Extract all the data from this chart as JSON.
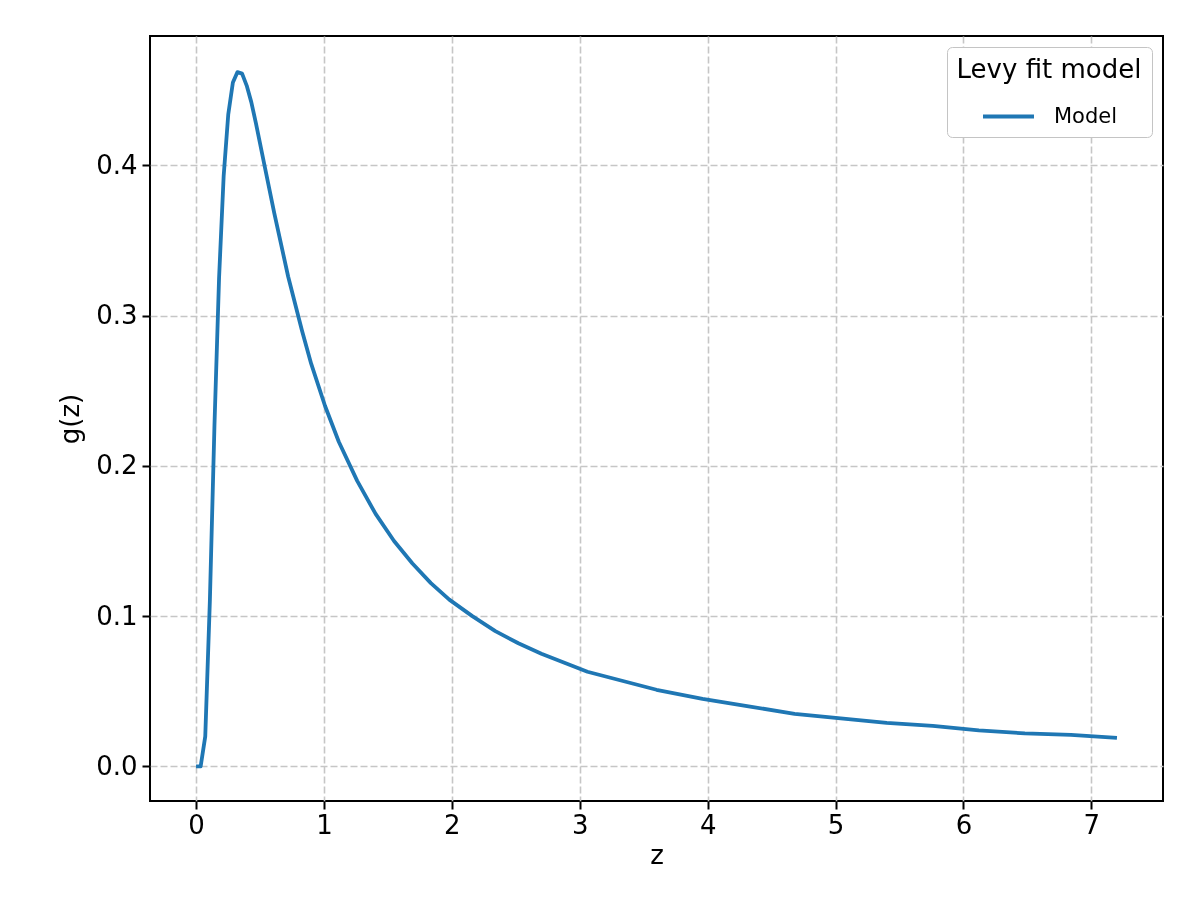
{
  "chart_data": {
    "type": "line",
    "xlabel": "z",
    "ylabel": "g(z)",
    "legend_title": "Levy fit model",
    "legend": "top right",
    "grid": true,
    "xlim": [
      -0.36,
      7.56
    ],
    "ylim": [
      -0.023,
      0.486
    ],
    "xticks": [
      0,
      1,
      2,
      3,
      4,
      5,
      6,
      7
    ],
    "yticks": [
      {
        "value": 0,
        "label": "0.0"
      },
      0.1,
      0.2,
      0.3,
      0.4
    ],
    "series": [
      {
        "name": "Model",
        "color": "#1f77b4",
        "x": [
          0,
          0.036,
          0.072,
          0.108,
          0.144,
          0.18,
          0.216,
          0.252,
          0.288,
          0.324,
          0.36,
          0.396,
          0.432,
          0.468,
          0.54,
          0.612,
          0.72,
          0.828,
          0.9,
          1.008,
          1.116,
          1.26,
          1.404,
          1.548,
          1.692,
          1.836,
          1.98,
          2.16,
          2.34,
          2.52,
          2.7,
          2.88,
          3.06,
          3.24,
          3.42,
          3.6,
          3.96,
          4.32,
          4.68,
          5.04,
          5.4,
          5.76,
          6.12,
          6.48,
          6.84,
          7.2
        ],
        "values": [
          0,
          0,
          0.02,
          0.11,
          0.227,
          0.325,
          0.393,
          0.434,
          0.455,
          0.462,
          0.461,
          0.453,
          0.442,
          0.428,
          0.398,
          0.368,
          0.326,
          0.29,
          0.268,
          0.24,
          0.216,
          0.19,
          0.168,
          0.15,
          0.135,
          0.122,
          0.111,
          0.1,
          0.09,
          0.082,
          0.075,
          0.069,
          0.063,
          0.059,
          0.055,
          0.051,
          0.045,
          0.04,
          0.035,
          0.032,
          0.029,
          0.027,
          0.024,
          0.022,
          0.021,
          0.019
        ]
      }
    ]
  }
}
